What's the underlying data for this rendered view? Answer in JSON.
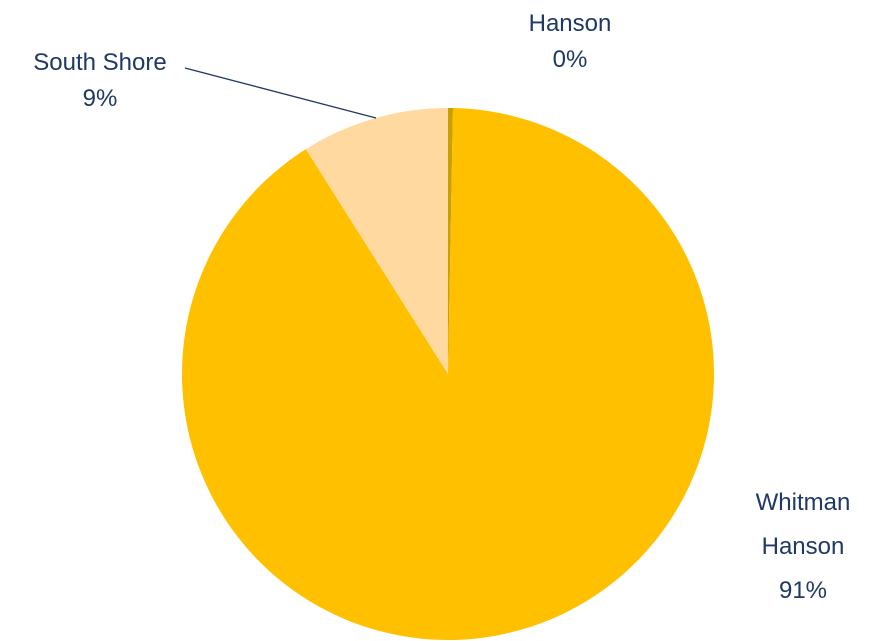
{
  "chart_data": {
    "type": "pie",
    "title": "",
    "slices": [
      {
        "label_lines": [
          "Whitman",
          "Hanson"
        ],
        "percent_label": "91%",
        "value": 91,
        "color": "#FFC000"
      },
      {
        "label_lines": [
          "Hanson"
        ],
        "percent_label": "0%",
        "value": 0.3,
        "color": "#C9A000"
      },
      {
        "label_lines": [
          "South Shore"
        ],
        "percent_label": "9%",
        "value": 9,
        "color": "#FFD9A0"
      }
    ],
    "label_color": "#1F3864"
  }
}
